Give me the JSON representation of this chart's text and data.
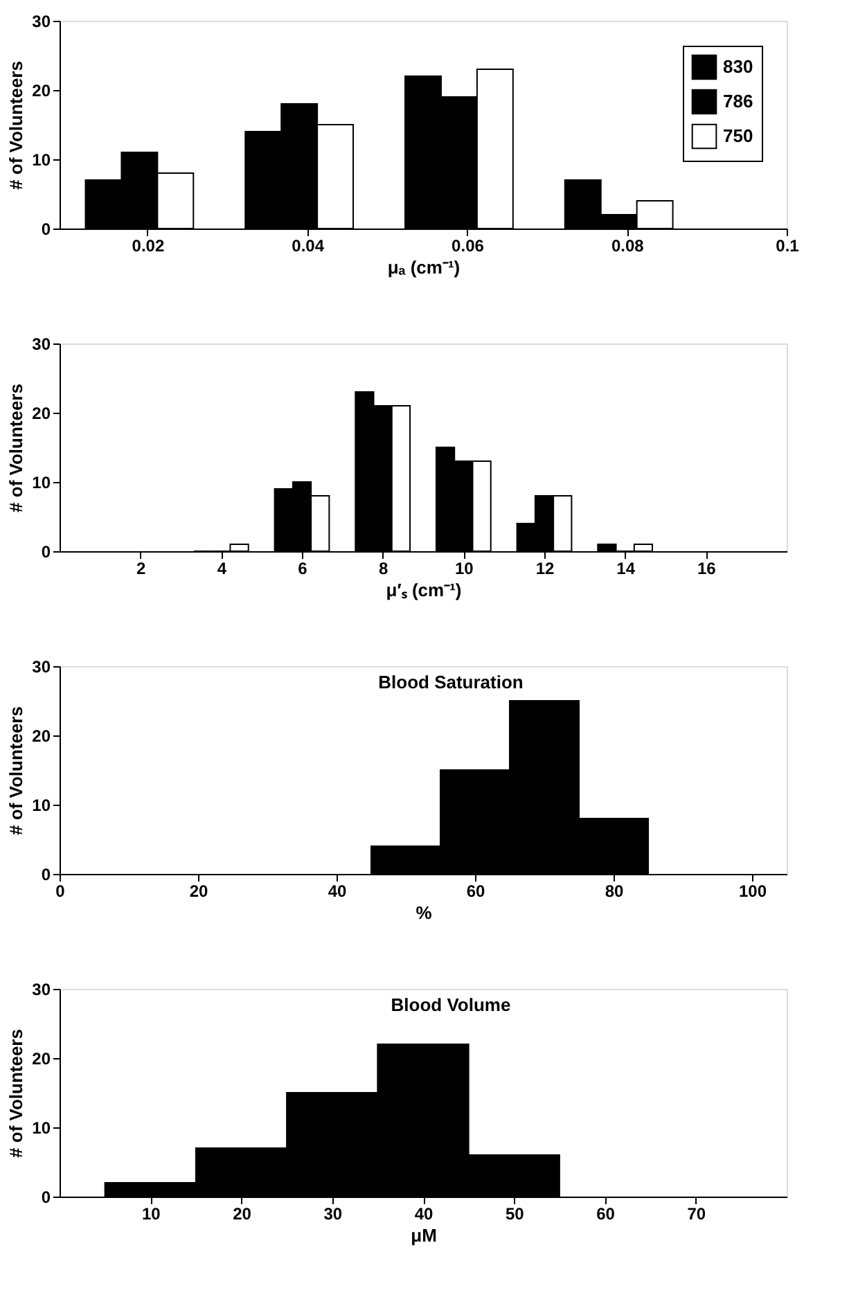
{
  "chart_data": [
    {
      "type": "bar",
      "xlabel": "μₐ (cm⁻¹)",
      "ylabel": "# of Volunteers",
      "xlim": [
        0.009,
        0.1
      ],
      "xticks": [
        0.02,
        0.04,
        0.06,
        0.08,
        0.1
      ],
      "ylim": [
        0,
        30
      ],
      "yticks": [
        0,
        10,
        20,
        30
      ],
      "grid": false,
      "legend": "top right",
      "series": [
        {
          "name": "830",
          "color": "#000000",
          "x": [
            0.0145,
            0.0345,
            0.0545,
            0.0745
          ],
          "values": [
            7,
            14,
            22,
            7
          ]
        },
        {
          "name": "786",
          "color": "#000000",
          "x": [
            0.019,
            0.039,
            0.059,
            0.079
          ],
          "values": [
            11,
            18,
            19,
            2
          ]
        },
        {
          "name": "750",
          "color": "#ffffff",
          "x": [
            0.0235,
            0.0435,
            0.0635,
            0.0835
          ],
          "values": [
            8,
            15,
            23,
            4
          ]
        }
      ]
    },
    {
      "type": "bar",
      "xlabel": "μ′ₛ (cm⁻¹)",
      "ylabel": "# of Volunteers",
      "xlim": [
        0,
        18
      ],
      "xticks": [
        2,
        4,
        6,
        8,
        10,
        12,
        14,
        16
      ],
      "ylim": [
        0,
        30
      ],
      "yticks": [
        0,
        10,
        20,
        30
      ],
      "grid": false,
      "legend": false,
      "series": [
        {
          "name": "830",
          "color": "#000000",
          "x": [
            3.55,
            5.55,
            7.55,
            9.55,
            11.55,
            13.55
          ],
          "values": [
            0,
            9,
            23,
            15,
            4,
            1
          ]
        },
        {
          "name": "786",
          "color": "#000000",
          "x": [
            4,
            6,
            8,
            10,
            12,
            14
          ],
          "values": [
            0,
            10,
            21,
            13,
            8,
            0
          ]
        },
        {
          "name": "750",
          "color": "#ffffff",
          "x": [
            4.45,
            6.45,
            8.45,
            10.45,
            12.45,
            14.45
          ],
          "values": [
            1,
            8,
            21,
            13,
            8,
            1
          ]
        }
      ]
    },
    {
      "type": "histogram",
      "title": "Blood Saturation",
      "xlabel": "%",
      "ylabel": "# of Volunteers",
      "xlim": [
        0,
        105
      ],
      "xticks": [
        0,
        20,
        40,
        60,
        80,
        100
      ],
      "ylim": [
        0,
        30
      ],
      "yticks": [
        0,
        10,
        20,
        30
      ],
      "grid": false,
      "color": "#000000",
      "bins": [
        45,
        55,
        65,
        75,
        85
      ],
      "values": [
        4,
        15,
        25,
        8
      ]
    },
    {
      "type": "histogram",
      "title": "Blood Volume",
      "xlabel": "μM",
      "ylabel": "# of Volunteers",
      "xlim": [
        0,
        80
      ],
      "xticks": [
        10,
        20,
        30,
        40,
        50,
        60,
        70
      ],
      "ylim": [
        0,
        30
      ],
      "yticks": [
        0,
        10,
        20,
        30
      ],
      "grid": false,
      "color": "#000000",
      "bins": [
        5,
        15,
        25,
        35,
        45,
        55
      ],
      "values": [
        2,
        7,
        15,
        22,
        6
      ]
    }
  ]
}
